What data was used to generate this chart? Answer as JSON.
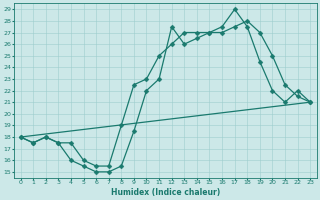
{
  "xlabel": "Humidex (Indice chaleur)",
  "bg_color": "#cce8e8",
  "grid_color": "#9ecece",
  "line_color": "#1a7a6e",
  "xlim": [
    -0.5,
    23.5
  ],
  "ylim": [
    14.5,
    29.5
  ],
  "xticks": [
    0,
    1,
    2,
    3,
    4,
    5,
    6,
    7,
    8,
    9,
    10,
    11,
    12,
    13,
    14,
    15,
    16,
    17,
    18,
    19,
    20,
    21,
    22,
    23
  ],
  "yticks": [
    15,
    16,
    17,
    18,
    19,
    20,
    21,
    22,
    23,
    24,
    25,
    26,
    27,
    28,
    29
  ],
  "line1_x": [
    0,
    1,
    2,
    3,
    4,
    5,
    6,
    7,
    8,
    9,
    10,
    11,
    12,
    13,
    14,
    15,
    16,
    17,
    18,
    19,
    20,
    21,
    22,
    23
  ],
  "line1_y": [
    18,
    17.5,
    18,
    17.5,
    16,
    15.5,
    15,
    15,
    15.5,
    18.5,
    22,
    23,
    27.5,
    26,
    26.5,
    27,
    27,
    27.5,
    28,
    27,
    25,
    22.5,
    21.5,
    21
  ],
  "line2_x": [
    0,
    1,
    2,
    3,
    4,
    5,
    6,
    7,
    8,
    9,
    10,
    11,
    12,
    13,
    14,
    15,
    16,
    17,
    18,
    19,
    20,
    21,
    22,
    23
  ],
  "line2_y": [
    18,
    17.5,
    18,
    17.5,
    17.5,
    16,
    15.5,
    15.5,
    19,
    22.5,
    23,
    25,
    26,
    27,
    27,
    27,
    27.5,
    29,
    27.5,
    24.5,
    22,
    21,
    22,
    21
  ],
  "line3_x": [
    0,
    23
  ],
  "line3_y": [
    18,
    21
  ],
  "markersize": 2.5,
  "linewidth": 0.9
}
